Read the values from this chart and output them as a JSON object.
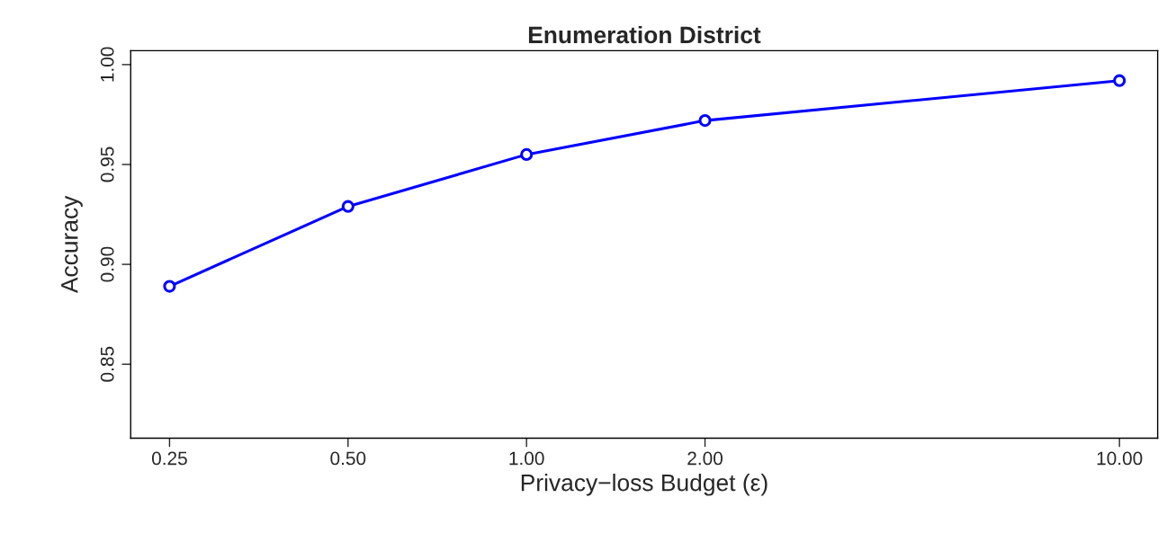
{
  "chart_data": {
    "type": "line",
    "title": "Enumeration District",
    "xlabel": "Privacy−loss Budget (ε)",
    "ylabel": "Accuracy",
    "x": [
      0.25,
      0.5,
      1,
      2,
      10
    ],
    "series": [
      {
        "color": "#0000ff",
        "values": [
          0.889,
          0.929,
          0.955,
          0.972,
          0.992
        ]
      }
    ],
    "log": "x",
    "xlim": [
      0.215,
      11.6
    ],
    "xticks": [
      0.25,
      {
        "value": 0.5,
        "label": "0.50"
      },
      {
        "value": 1,
        "label": "1.00"
      },
      {
        "value": 2,
        "label": "2.00"
      },
      {
        "value": 10,
        "label": "10.00"
      }
    ],
    "ylim": [
      0.813,
      1.007
    ],
    "yticks": [
      0.85,
      {
        "value": 0.9,
        "label": "0.90"
      },
      0.95,
      {
        "value": 1.0,
        "label": "1.00"
      }
    ],
    "grid": false,
    "marker": "circle",
    "line_style": "solid"
  }
}
